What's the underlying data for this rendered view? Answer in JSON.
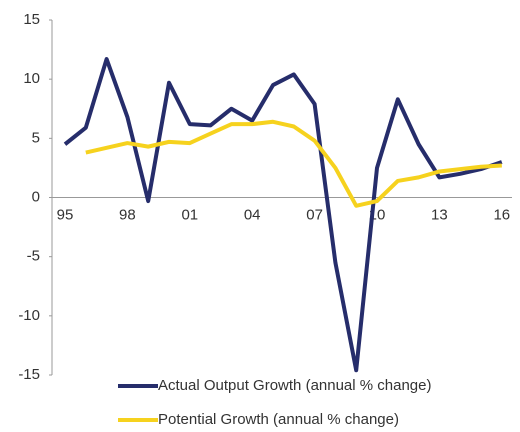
{
  "chart_data": {
    "type": "line",
    "categories": [
      "95",
      null,
      null,
      "98",
      null,
      null,
      "01",
      null,
      null,
      "04",
      null,
      null,
      "07",
      null,
      null,
      "10",
      null,
      null,
      "13",
      null,
      null,
      "16"
    ],
    "series": [
      {
        "name": "Actual Output Growth (annual % change)",
        "color": "#262d6b",
        "values": [
          4.5,
          5.9,
          11.7,
          6.8,
          -0.3,
          9.7,
          6.2,
          6.1,
          7.5,
          6.5,
          9.5,
          10.4,
          7.9,
          -5.5,
          -14.6,
          2.5,
          8.3,
          4.5,
          1.7,
          2.0,
          2.4,
          3.0
        ]
      },
      {
        "name": "Potential Growth (annual % change)",
        "color": "#f6d21e",
        "values": [
          null,
          3.8,
          4.2,
          4.6,
          4.3,
          4.7,
          4.6,
          5.4,
          6.2,
          6.2,
          6.4,
          6.0,
          4.8,
          2.5,
          -0.7,
          -0.3,
          1.4,
          1.7,
          2.2,
          2.4,
          2.6,
          2.7
        ]
      }
    ],
    "ylim": [
      -15,
      15
    ],
    "yticks": [
      -15,
      -10,
      -5,
      0,
      5,
      10,
      15
    ],
    "grid": false,
    "legend": "bottom"
  }
}
